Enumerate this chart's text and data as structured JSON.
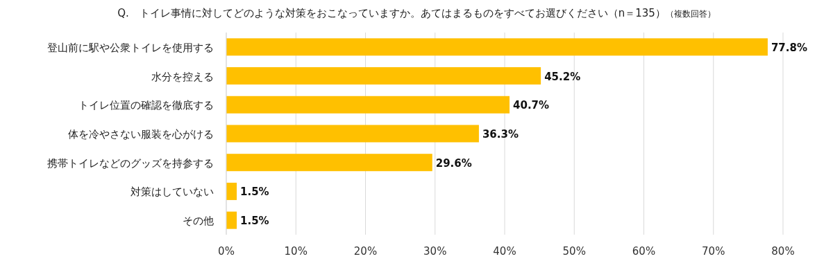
{
  "chart_data": {
    "type": "bar",
    "orientation": "horizontal",
    "title": "Q.　トイレ事情に対してどのような対策をおこなっていますか。あてはまるものをすべてお選びください（n＝135）",
    "subtitle": "（複数回答）",
    "categories": [
      "登山前に駅や公衆トイレを使用する",
      "水分を控える",
      "トイレ位置の確認を徹底する",
      "体を冷やさない服装を心がける",
      "携帯トイレなどのグッズを持参する",
      "対策はしていない",
      "その他"
    ],
    "values": [
      77.8,
      45.2,
      40.7,
      36.3,
      29.6,
      1.5,
      1.5
    ],
    "value_labels": [
      "77.8%",
      "45.2%",
      "40.7%",
      "36.3%",
      "29.6%",
      "1.5%",
      "1.5%"
    ],
    "color": "#ffc000",
    "xlim": [
      0,
      80
    ],
    "xticks": [
      {
        "value": 0,
        "label": "0%"
      },
      {
        "value": 10,
        "label": "10%"
      },
      {
        "value": 20,
        "label": "20%"
      },
      {
        "value": 30,
        "label": "30%"
      },
      {
        "value": 40,
        "label": "40%"
      },
      {
        "value": 50,
        "label": "50%"
      },
      {
        "value": 60,
        "label": "60%"
      },
      {
        "value": 70,
        "label": "70%"
      },
      {
        "value": 80,
        "label": "80%"
      }
    ],
    "grid": "x"
  }
}
